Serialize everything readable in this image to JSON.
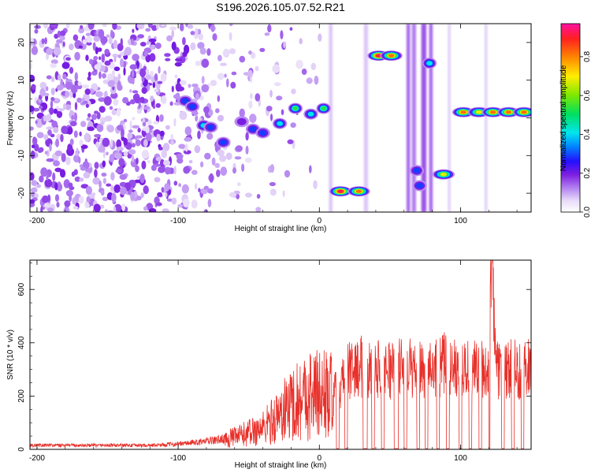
{
  "figure": {
    "title": "S196.2026.105.07.52.R21"
  },
  "chart_data": [
    {
      "type": "heatmap",
      "xlabel": "Height of straight line (km)",
      "ylabel": "Frequency (Hz)",
      "xlim": [
        -205,
        150
      ],
      "ylim": [
        -25,
        25
      ],
      "xticks": [
        -200,
        -100,
        0,
        100
      ],
      "yticks": [
        -20,
        -10,
        0,
        10,
        20
      ],
      "colorbar": {
        "label": "Normalized spectral amplitude",
        "range": [
          0,
          0.97
        ],
        "ticks": [
          0.0,
          0.2,
          0.4,
          0.6,
          0.8
        ]
      },
      "features": [
        {
          "x": -95,
          "y": 4.5,
          "amp": 0.35
        },
        {
          "x": -90,
          "y": 3.0,
          "amp": 0.3
        },
        {
          "x": -82,
          "y": -2.0,
          "amp": 0.45
        },
        {
          "x": -77,
          "y": -2.5,
          "amp": 0.3
        },
        {
          "x": -68,
          "y": -6.5,
          "amp": 0.3
        },
        {
          "x": -55,
          "y": -1.0,
          "amp": 0.25
        },
        {
          "x": -47,
          "y": -3.0,
          "amp": 0.35
        },
        {
          "x": -40,
          "y": -4.0,
          "amp": 0.3
        },
        {
          "x": -28,
          "y": -1.5,
          "amp": 0.45
        },
        {
          "x": -17,
          "y": 2.5,
          "amp": 0.55
        },
        {
          "x": -6,
          "y": 1.0,
          "amp": 0.5
        },
        {
          "x": 3,
          "y": 2.5,
          "amp": 0.55
        },
        {
          "x": 15,
          "y": -19.5,
          "amp": 0.95
        },
        {
          "x": 28,
          "y": -19.5,
          "amp": 0.85
        },
        {
          "x": 42,
          "y": 16.5,
          "amp": 0.95
        },
        {
          "x": 51,
          "y": 16.5,
          "amp": 0.9
        },
        {
          "x": 69,
          "y": -14.0,
          "amp": 0.3
        },
        {
          "x": 71,
          "y": -18.0,
          "amp": 0.35
        },
        {
          "x": 78,
          "y": 14.5,
          "amp": 0.45
        },
        {
          "x": 88,
          "y": -15.0,
          "amp": 0.8
        },
        {
          "x": 102,
          "y": 1.5,
          "amp": 0.9
        },
        {
          "x": 113,
          "y": 1.5,
          "amp": 0.8
        },
        {
          "x": 123,
          "y": 1.5,
          "amp": 0.9
        },
        {
          "x": 134,
          "y": 1.5,
          "amp": 0.85
        },
        {
          "x": 145,
          "y": 1.5,
          "amp": 0.85
        }
      ]
    },
    {
      "type": "line",
      "xlabel": "Height of straight line (km)",
      "ylabel": "SNR (10 * v/v)",
      "xlim": [
        -205,
        150
      ],
      "ylim": [
        0,
        710
      ],
      "xticks": [
        -200,
        -100,
        0,
        100
      ],
      "yticks": [
        0,
        200,
        400,
        600
      ],
      "series": [
        {
          "name": "SNR",
          "color": "#e8302a",
          "x": [
            -205,
            -180,
            -150,
            -120,
            -100,
            -80,
            -60,
            -40,
            -30,
            -20,
            -10,
            0,
            10,
            15,
            20,
            30,
            40,
            50,
            60,
            70,
            80,
            90,
            100,
            110,
            120,
            122,
            125,
            130,
            140,
            150
          ],
          "y": [
            15,
            15,
            15,
            15,
            20,
            30,
            45,
            80,
            120,
            170,
            200,
            210,
            200,
            240,
            290,
            310,
            305,
            300,
            305,
            300,
            310,
            320,
            310,
            300,
            300,
            700,
            290,
            300,
            300,
            300
          ]
        }
      ]
    }
  ]
}
